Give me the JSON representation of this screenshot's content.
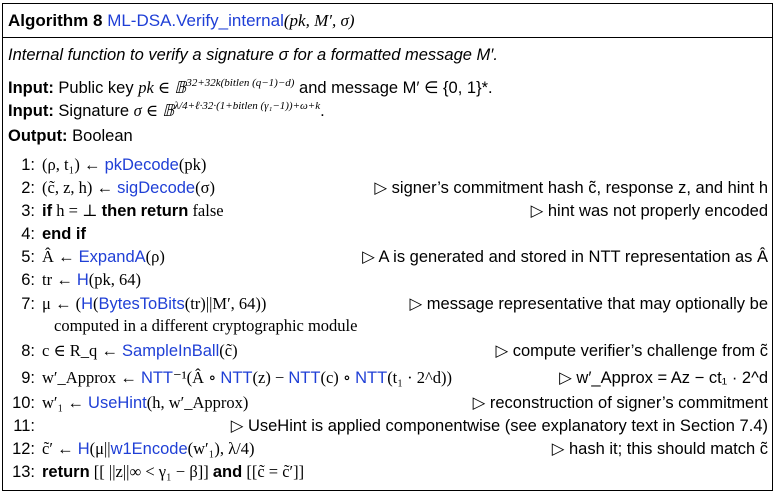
{
  "algorithm": {
    "label": "Algorithm 8",
    "name": "ML-DSA.Verify_internal",
    "params": "(pk, M′, σ)",
    "description": "Internal function to verify a signature σ for a formatted message M′."
  },
  "inputs": [
    {
      "label": "Input:",
      "text_before": "Public key",
      "math": "pk ∈ 𝔹",
      "sup": "32+32k(bitlen (q−1)−d)",
      "text_after": "and message M′ ∈ {0, 1}*."
    },
    {
      "label": "Input:",
      "text_before": "Signature",
      "math": "σ ∈ 𝔹",
      "sup": "λ/4+ℓ·32·(1+bitlen (γ₁−1))+ω+k",
      "text_after": "."
    }
  ],
  "output": {
    "label": "Output:",
    "text": "Boolean"
  },
  "steps": [
    {
      "n": "1:",
      "code": "(ρ, t₁) ← pkDecode(pk)",
      "comment": ""
    },
    {
      "n": "2:",
      "code": "(c̃, z, h) ← sigDecode(σ)",
      "comment": "▷ signer’s commitment hash c̃, response z, and hint h"
    },
    {
      "n": "3:",
      "code": "if h = ⊥ then return false",
      "comment": "▷ hint was not properly encoded"
    },
    {
      "n": "4:",
      "code": "end if",
      "comment": ""
    },
    {
      "n": "5:",
      "code": "Â ← ExpandA(ρ)",
      "comment": "▷ A is generated and stored in NTT representation as Â"
    },
    {
      "n": "6:",
      "code": "tr ← H(pk, 64)",
      "comment": ""
    },
    {
      "n": "7:",
      "code": "μ ← (H(BytesToBits(tr)||M′, 64))",
      "comment": "▷ message representative that may optionally be"
    },
    {
      "n": "",
      "code": "computed in a different cryptographic module",
      "comment": ""
    },
    {
      "n": "8:",
      "code": "c ∈ R_q ← SampleInBall(c̃)",
      "comment": "▷ compute verifier’s challenge from c̃"
    },
    {
      "n": "9:",
      "code": "w′_Approx ← NTT⁻¹(Â ∘ NTT(z) − NTT(c) ∘ NTT(t₁ · 2^d))",
      "comment": "▷ w′_Approx = Az − ct₁ · 2^d"
    },
    {
      "n": "10:",
      "code": "w′₁ ← UseHint(h, w′_Approx)",
      "comment": "▷ reconstruction of signer’s commitment"
    },
    {
      "n": "11:",
      "code": "",
      "comment": "▷ UseHint is applied componentwise (see explanatory text in Section 7.4)"
    },
    {
      "n": "12:",
      "code": "c̃′ ← H(μ||w1Encode(w′₁), λ/4)",
      "comment": "▷ hash it; this should match c̃"
    },
    {
      "n": "13:",
      "code": "return [[ ||z||∞ < γ₁ − β]] and [[c̃ = c̃′]]",
      "comment": ""
    }
  ],
  "colors": {
    "link": "#1f3fd6",
    "text": "#000000",
    "border": "#000000"
  }
}
